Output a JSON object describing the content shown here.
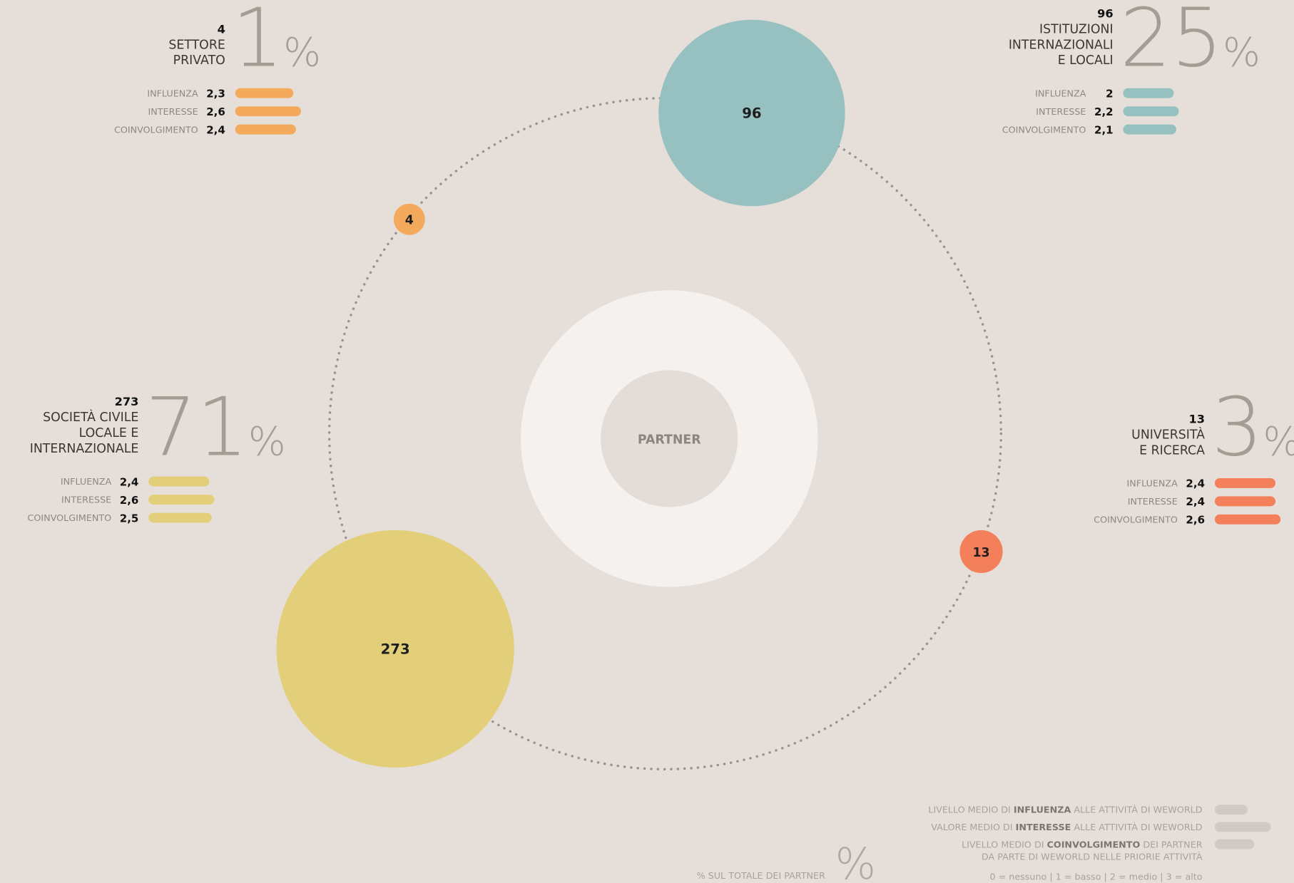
{
  "chart_data": {
    "type": "bubble",
    "center_label": "PARTNER",
    "unit": "%",
    "xlim": [
      0,
      3
    ],
    "metrics": [
      "INFLUENZA",
      "INTERESSE",
      "COINVOLGIMENTO"
    ],
    "groups": [
      {
        "count": 4,
        "name_lines": [
          "SETTORE",
          "PRIVATO"
        ],
        "percent": 1,
        "color": "#f3aa5c",
        "values": [
          2.3,
          2.6,
          2.4
        ],
        "value_labels": [
          "2,3",
          "2,6",
          "2,4"
        ]
      },
      {
        "count": 96,
        "name_lines": [
          "ISTITUZIONI",
          "INTERNAZIONALI",
          "E LOCALI"
        ],
        "percent": 25,
        "color": "#97c1c0",
        "values": [
          2,
          2.2,
          2.1
        ],
        "value_labels": [
          "2",
          "2,2",
          "2,1"
        ]
      },
      {
        "count": 273,
        "name_lines": [
          "SOCIETÀ CIVILE",
          "LOCALE E",
          "INTERNAZIONALE"
        ],
        "percent": 71,
        "color": "#e3cf7a",
        "values": [
          2.4,
          2.6,
          2.5
        ],
        "value_labels": [
          "2,4",
          "2,6",
          "2,5"
        ]
      },
      {
        "count": 13,
        "name_lines": [
          "UNIVERSITÀ",
          "E RICERCA"
        ],
        "percent": 3,
        "color": "#f47f5b",
        "values": [
          2.4,
          2.4,
          2.6
        ],
        "value_labels": [
          "2,4",
          "2,4",
          "2,6"
        ]
      }
    ],
    "legend": [
      {
        "lines": [
          [
            "LIVELLO MEDIO DI ",
            "INFLUENZA",
            " ALLE ATTIVITÀ DI WEWORLD"
          ]
        ]
      },
      {
        "lines": [
          [
            "VALORE MEDIO DI ",
            "INTERESSE",
            " ALLE ATTIVITÀ DI WEWORLD"
          ]
        ]
      },
      {
        "lines": [
          [
            "LIVELLO MEDIO DI ",
            "COINVOLGIMENTO",
            " DEI PARTNER"
          ],
          [
            "DA PARTE DI WEWORLD NELLE PRIORIE ATTIVITÀ"
          ]
        ]
      }
    ],
    "scale_note": "0 = nessuno | 1 = basso | 2 = medio | 3 = alto",
    "percent_note": "% SUL TOTALE DEI PARTNER"
  }
}
